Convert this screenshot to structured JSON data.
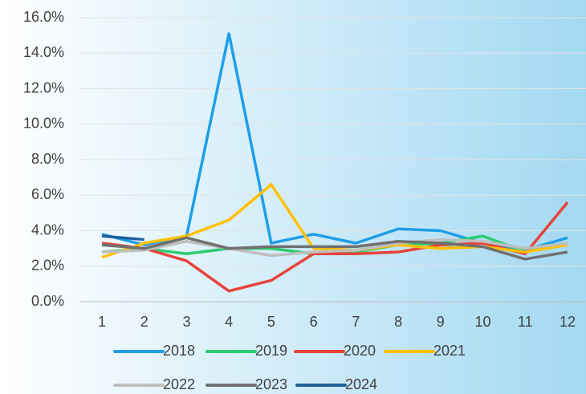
{
  "chart_data": {
    "type": "line",
    "categories": [
      "1",
      "2",
      "3",
      "4",
      "5",
      "6",
      "7",
      "8",
      "9",
      "10",
      "11",
      "12"
    ],
    "series": [
      {
        "name": "2018",
        "color": "#1f9ee8",
        "values": [
          3.8,
          3.2,
          3.7,
          15.1,
          3.3,
          3.8,
          3.3,
          4.1,
          4.0,
          3.3,
          2.9,
          3.6
        ]
      },
      {
        "name": "2019",
        "color": "#2ecc71",
        "values": [
          2.8,
          3.0,
          2.7,
          3.0,
          3.0,
          2.7,
          2.8,
          3.2,
          3.3,
          3.7,
          2.8,
          3.3
        ]
      },
      {
        "name": "2020",
        "color": "#e8433a",
        "values": [
          3.3,
          3.0,
          2.3,
          0.6,
          1.2,
          2.7,
          2.7,
          2.8,
          3.2,
          3.3,
          2.7,
          5.6
        ]
      },
      {
        "name": "2021",
        "color": "#ffc000",
        "values": [
          2.5,
          3.3,
          3.7,
          4.6,
          6.6,
          3.0,
          2.9,
          3.2,
          3.0,
          3.1,
          2.8,
          3.2
        ]
      },
      {
        "name": "2022",
        "color": "#bfbfbf",
        "values": [
          2.8,
          2.9,
          3.4,
          3.0,
          2.6,
          2.8,
          2.9,
          3.3,
          3.5,
          3.4,
          3.0,
          3.3
        ]
      },
      {
        "name": "2023",
        "color": "#707070",
        "values": [
          3.2,
          3.0,
          3.6,
          3.0,
          3.1,
          3.1,
          3.1,
          3.4,
          3.3,
          3.1,
          2.4,
          2.8
        ]
      },
      {
        "name": "2024",
        "color": "#1f5f9a",
        "values": [
          3.7,
          3.5,
          null,
          null,
          null,
          null,
          null,
          null,
          null,
          null,
          null,
          null
        ]
      }
    ],
    "ylim": [
      0,
      16
    ],
    "yticks": [
      {
        "value": 0,
        "label": "0.0%"
      },
      {
        "value": 2,
        "label": "2.0%"
      },
      {
        "value": 4,
        "label": "4.0%"
      },
      {
        "value": 6,
        "label": "6.0%"
      },
      {
        "value": 8,
        "label": "8.0%"
      },
      {
        "value": 10,
        "label": "10.0%"
      },
      {
        "value": 12,
        "label": "12.0%"
      },
      {
        "value": 14,
        "label": "14.0%"
      },
      {
        "value": 16,
        "label": "16.0%"
      }
    ],
    "grid": true,
    "legend": "bottom"
  }
}
